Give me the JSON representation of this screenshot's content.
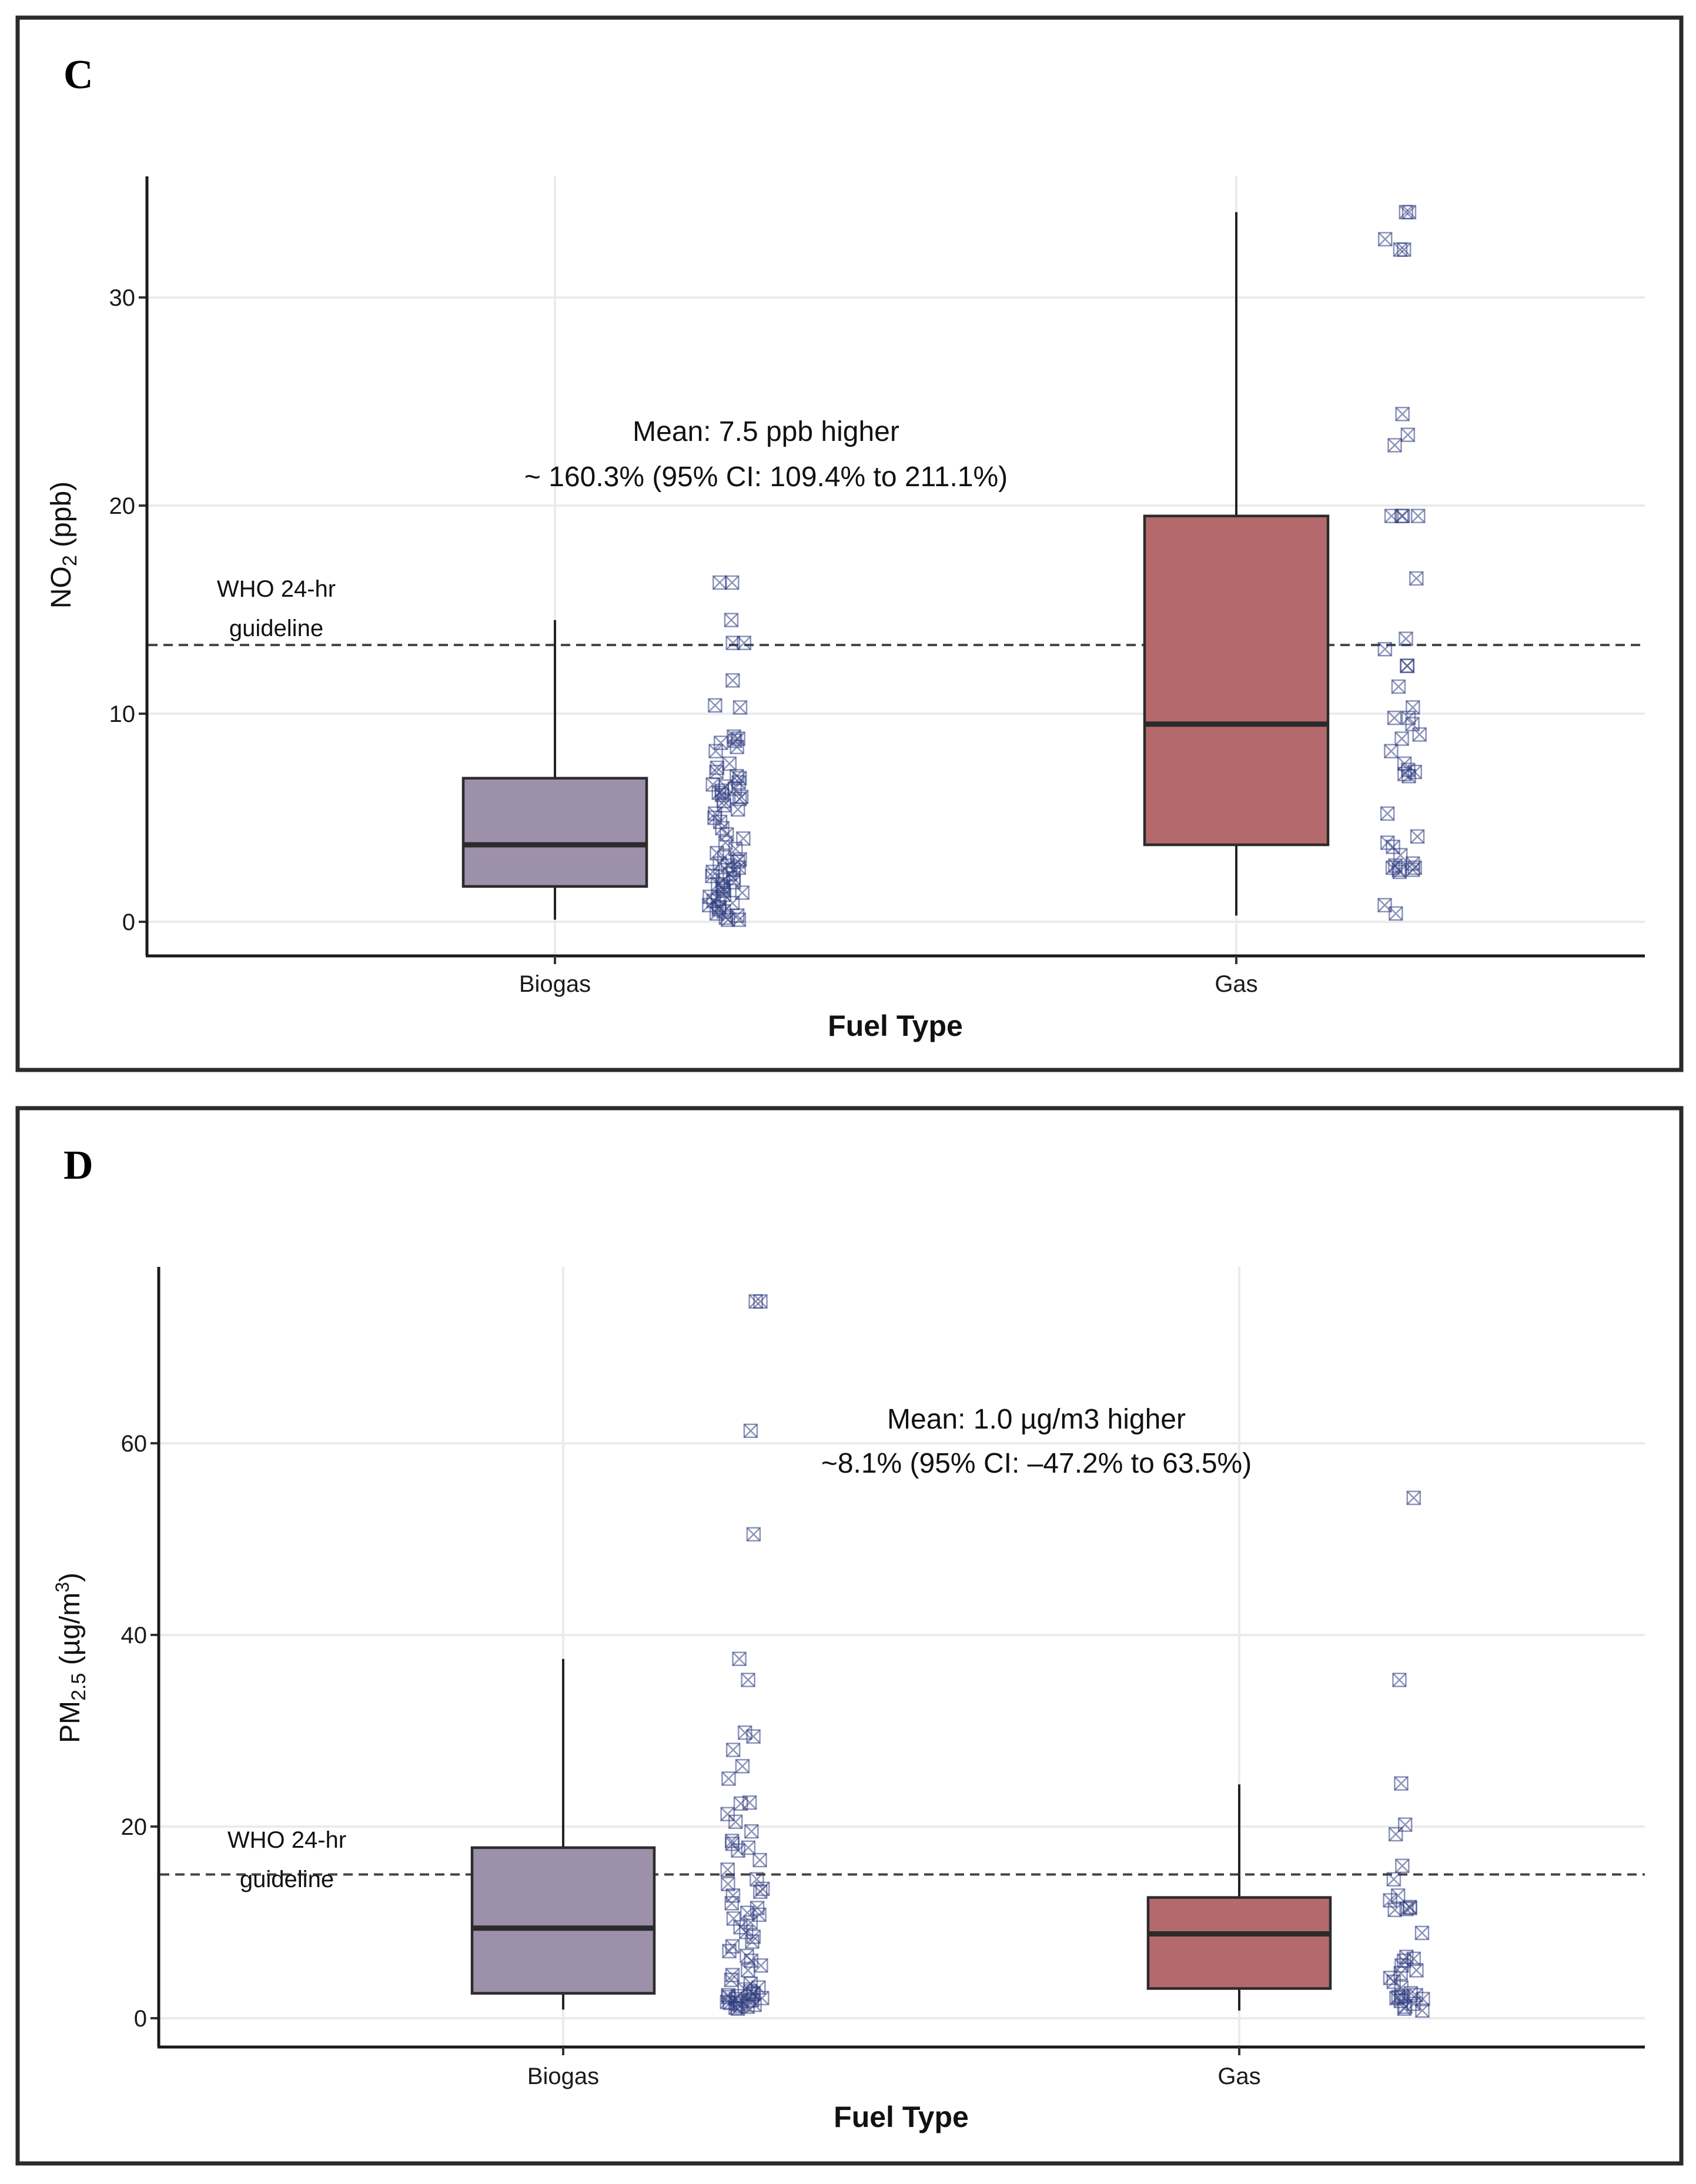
{
  "chart_data": [
    {
      "type": "box",
      "panel_label": "C",
      "xlabel": "Fuel Type",
      "ylabel": "NO₂ (ppb)",
      "ylabel_parts": {
        "base": "NO",
        "sub": "2",
        "rest": " (ppb)"
      },
      "ylim": [
        -1.5,
        36
      ],
      "yticks": [
        0,
        10,
        20,
        30
      ],
      "categories": [
        "Biogas",
        "Gas"
      ],
      "colors": {
        "Biogas": "#9d90aa",
        "Gas": "#b46a6c"
      },
      "boxes": [
        {
          "category": "Biogas",
          "min": 0.1,
          "q1": 1.7,
          "median": 3.7,
          "q3": 6.9,
          "max": 14.5
        },
        {
          "category": "Gas",
          "min": 0.3,
          "q1": 3.7,
          "median": 9.5,
          "q3": 19.5,
          "max": 34.1
        }
      ],
      "guideline": {
        "value": 13.3,
        "label_line1": "WHO 24-hr",
        "label_line2": "guideline"
      },
      "annotation": {
        "line1": "Mean: 7.5 ppb higher",
        "line2": "~ 160.3% (95% CI: 109.4% to 211.1%)"
      },
      "points": {
        "Biogas": [
          16.3,
          16.3,
          14.5,
          13.4,
          13.4,
          11.6,
          10.4,
          10.3,
          8.9,
          8.8,
          8.7,
          8.6,
          8.4,
          8.2,
          7.6,
          7.4,
          7.2,
          7.0,
          6.9,
          6.7,
          6.6,
          6.5,
          6.4,
          6.3,
          6.2,
          6.1,
          6.0,
          5.9,
          5.8,
          5.6,
          5.4,
          5.2,
          5.0,
          4.8,
          4.5,
          4.2,
          4.0,
          3.8,
          3.5,
          3.3,
          3.1,
          3.0,
          2.9,
          2.8,
          2.7,
          2.6,
          2.5,
          2.4,
          2.3,
          2.2,
          2.1,
          2.0,
          1.9,
          1.8,
          1.7,
          1.6,
          1.5,
          1.4,
          1.3,
          1.2,
          1.1,
          1.0,
          0.9,
          0.8,
          0.7,
          0.6,
          0.5,
          0.4,
          0.3,
          0.2,
          0.1,
          0.1
        ],
        "Gas": [
          34.1,
          34.1,
          32.8,
          32.3,
          32.3,
          24.4,
          23.4,
          22.9,
          19.5,
          19.5,
          19.5,
          19.5,
          16.5,
          13.6,
          13.1,
          12.3,
          12.3,
          11.3,
          10.3,
          9.8,
          9.8,
          9.5,
          9.0,
          8.8,
          8.2,
          7.6,
          7.3,
          7.2,
          7.1,
          7.0,
          5.2,
          4.1,
          3.8,
          3.6,
          3.2,
          2.8,
          2.7,
          2.6,
          2.6,
          2.5,
          2.5,
          2.4,
          0.8,
          0.4
        ]
      }
    },
    {
      "type": "box",
      "panel_label": "D",
      "xlabel": "Fuel Type",
      "ylabel": "PM2.5 (µg/m3)",
      "ylabel_parts": {
        "base": "PM",
        "sub": "2.5",
        "mid": " (µg/m",
        "sup": "3",
        "end": ")"
      },
      "ylim": [
        -3,
        78
      ],
      "yticks": [
        0,
        20,
        40,
        60
      ],
      "categories": [
        "Biogas",
        "Gas"
      ],
      "colors": {
        "Biogas": "#9d90aa",
        "Gas": "#b46a6c"
      },
      "boxes": [
        {
          "category": "Biogas",
          "min": 0.9,
          "q1": 2.6,
          "median": 9.4,
          "q3": 17.8,
          "max": 37.5
        },
        {
          "category": "Gas",
          "min": 0.8,
          "q1": 3.1,
          "median": 8.8,
          "q3": 12.6,
          "max": 24.4
        }
      ],
      "guideline": {
        "value": 15,
        "label_line1": "WHO 24-hr",
        "label_line2": "guideline"
      },
      "annotation": {
        "line1": "Mean: 1.0 µg/m3 higher",
        "line2": "~8.1% (95% CI: –47.2% to 63.5%)"
      },
      "points": {
        "Biogas": [
          74.8,
          74.8,
          61.3,
          50.5,
          37.5,
          35.3,
          29.8,
          29.4,
          28.0,
          26.3,
          25.0,
          22.5,
          22.4,
          21.3,
          20.5,
          19.5,
          18.5,
          18.2,
          17.8,
          17.5,
          16.5,
          15.5,
          14.5,
          14.0,
          13.5,
          13.2,
          12.8,
          12.0,
          11.5,
          11.0,
          10.8,
          10.4,
          10.0,
          9.5,
          9.0,
          8.5,
          8.0,
          7.5,
          7.0,
          6.5,
          6.0,
          5.5,
          5.0,
          4.5,
          4.0,
          3.6,
          3.2,
          3.0,
          2.8,
          2.6,
          2.5,
          2.4,
          2.3,
          2.2,
          2.1,
          2.0,
          1.9,
          1.8,
          1.7,
          1.6,
          1.5,
          1.4,
          1.3,
          1.2,
          1.1,
          1.0
        ],
        "Gas": [
          54.3,
          35.3,
          24.5,
          20.2,
          19.2,
          15.9,
          14.5,
          12.8,
          12.3,
          11.6,
          11.5,
          11.4,
          11.3,
          8.9,
          6.4,
          6.2,
          6.0,
          5.5,
          5.0,
          4.7,
          4.2,
          3.8,
          3.2,
          2.6,
          2.4,
          2.3,
          2.2,
          2.1,
          2.0,
          1.8,
          1.5,
          1.2,
          1.0,
          0.8
        ]
      }
    }
  ]
}
